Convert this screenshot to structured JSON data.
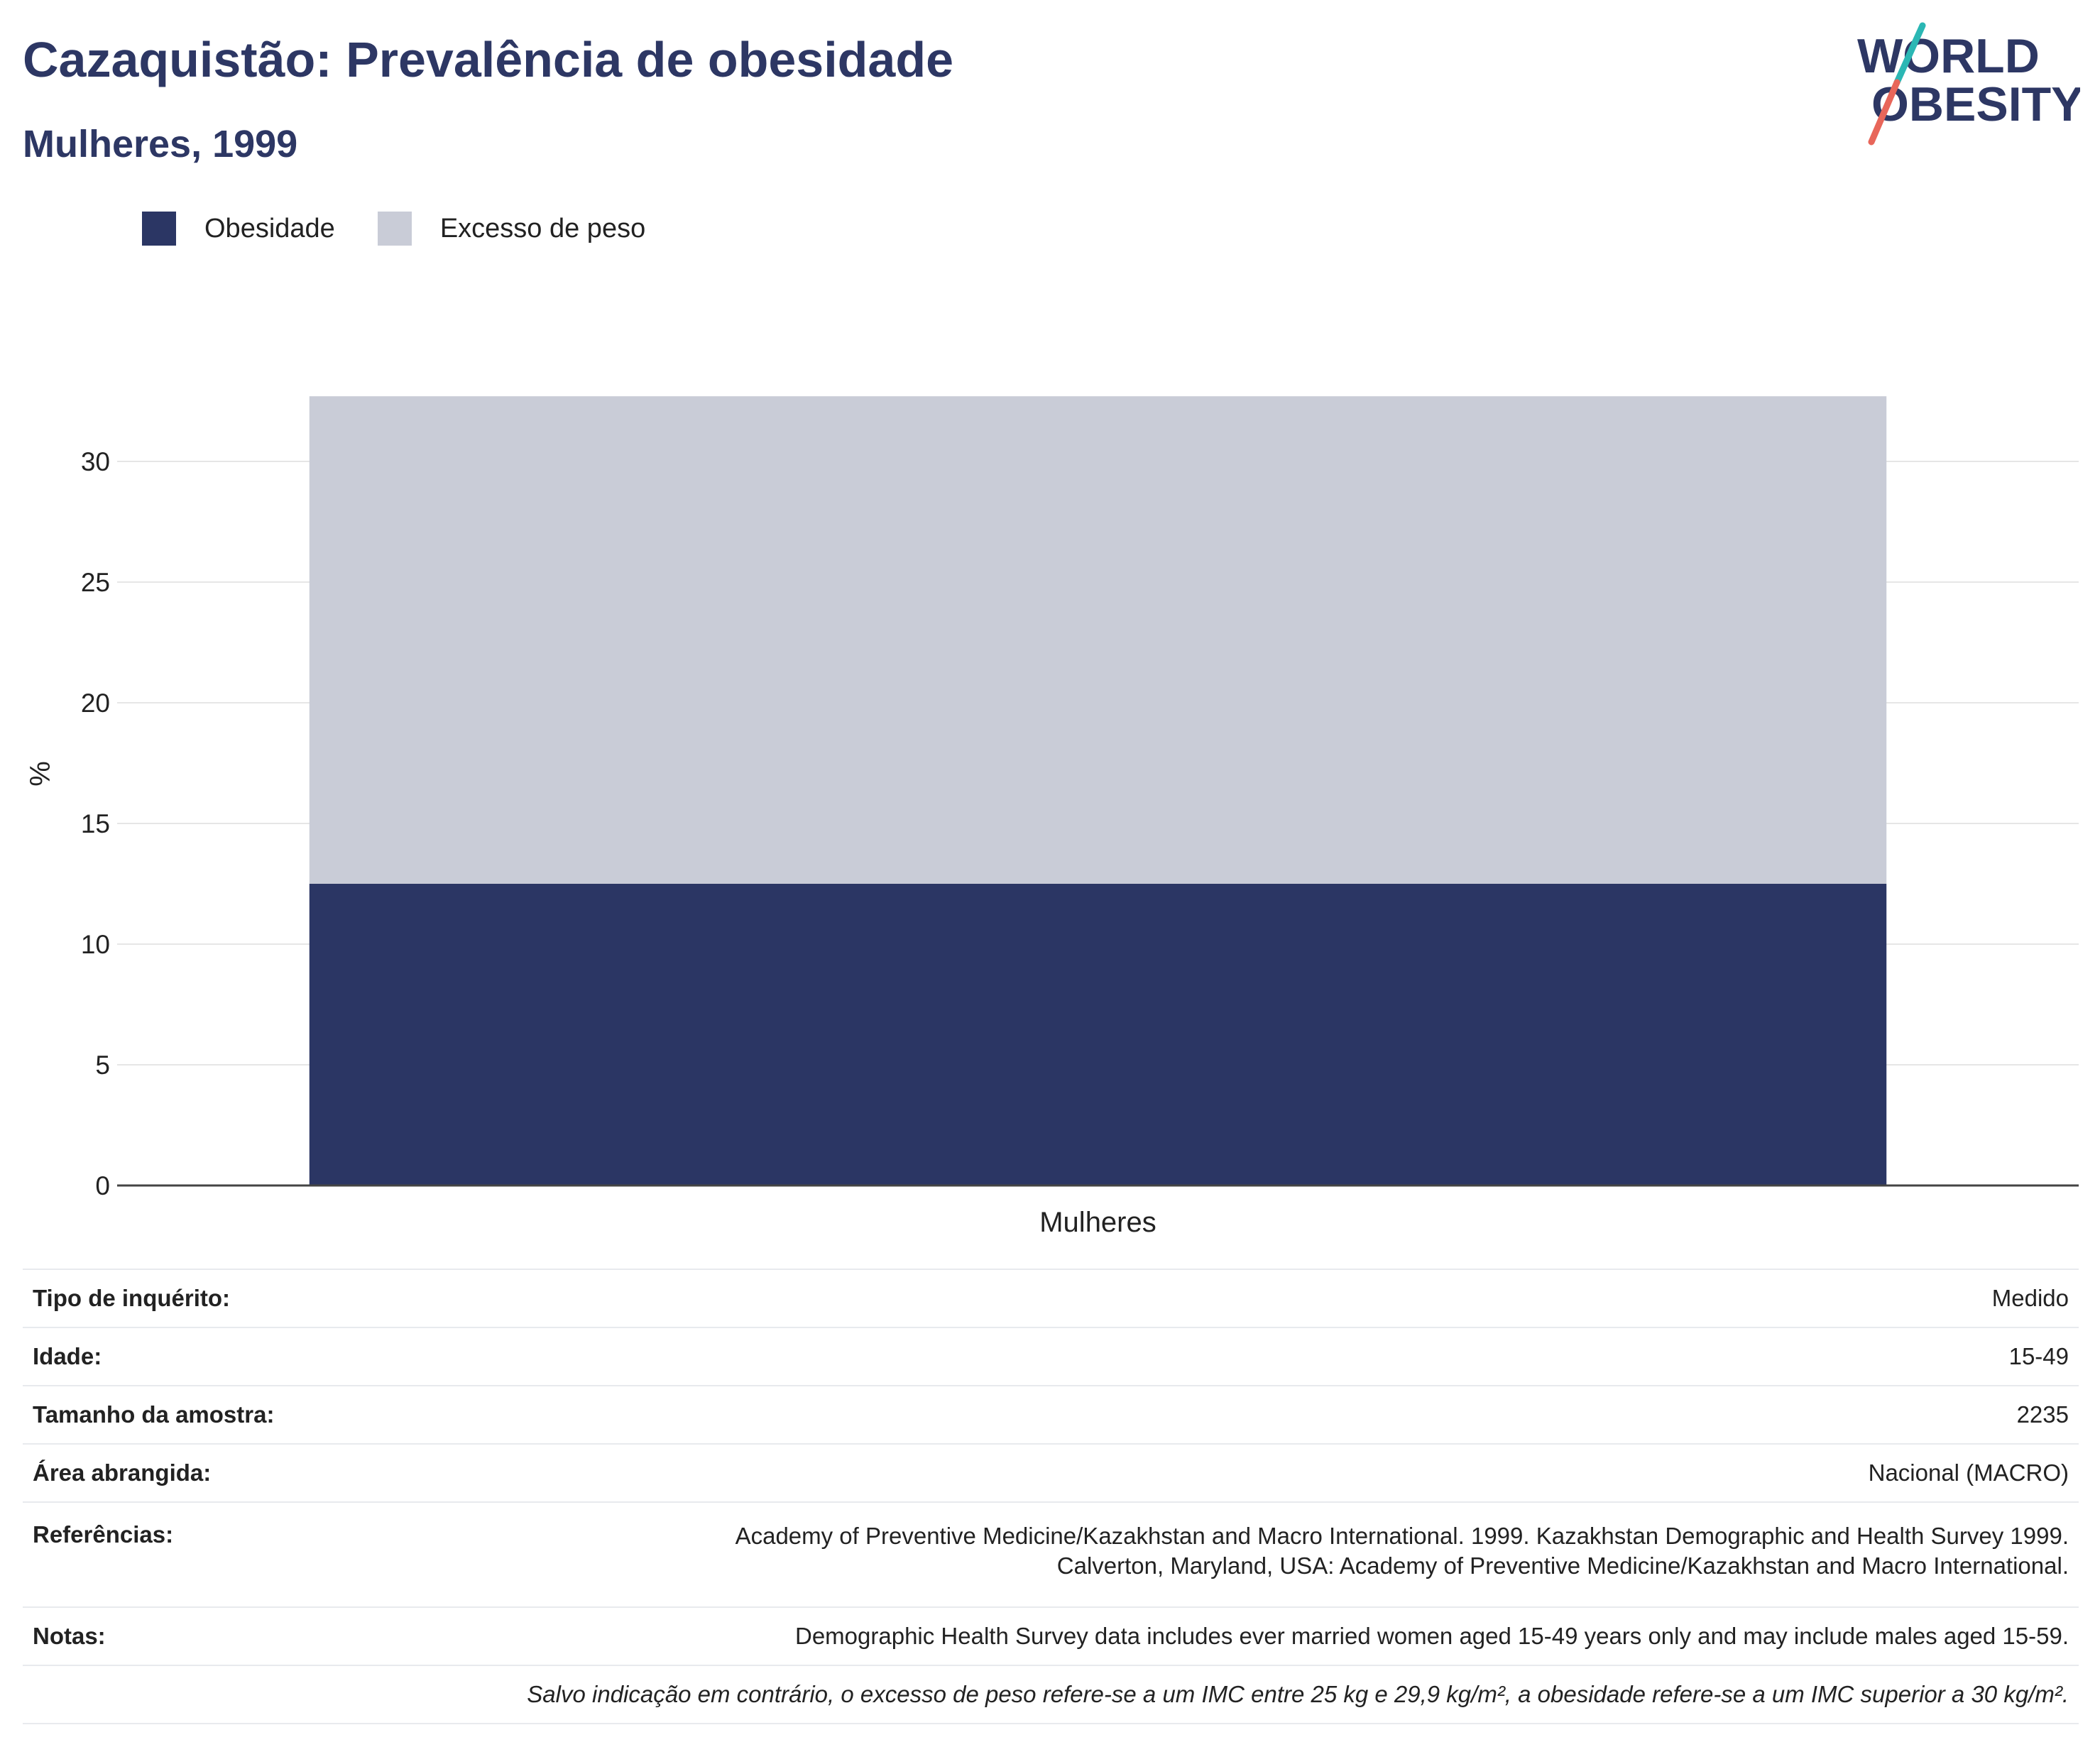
{
  "header": {
    "title": "Cazaquistão: Prevalência de obesidade",
    "subtitle": "Mulheres, 1999"
  },
  "logo": {
    "line1": "WORLD",
    "line2": "OBESITY",
    "colors": {
      "text": "#2d3764",
      "slash_top": "#2bb7b4",
      "slash_bottom": "#e8665a"
    }
  },
  "colors": {
    "obesity": "#2b3664",
    "overweight": "#c9ccd7",
    "grid": "#e6e6e6",
    "axis": "#444444"
  },
  "chart_data": {
    "type": "bar",
    "stacked": true,
    "categories": [
      "Mulheres"
    ],
    "series": [
      {
        "name": "Obesidade",
        "values": [
          12.5
        ],
        "color": "#2b3664"
      },
      {
        "name": "Excesso de peso",
        "values": [
          20.2
        ],
        "color": "#c9ccd7"
      }
    ],
    "ylabel": "%",
    "xlabel": "",
    "ylim": [
      0,
      33
    ],
    "yticks": [
      0,
      5,
      10,
      15,
      20,
      25,
      30
    ],
    "grid": true,
    "legend_position": "top-left"
  },
  "info": {
    "rows": [
      {
        "key": "Tipo de inquérito:",
        "value": "Medido"
      },
      {
        "key": "Idade:",
        "value": "15-49"
      },
      {
        "key": "Tamanho da amostra:",
        "value": "2235"
      },
      {
        "key": "Área abrangida:",
        "value": "Nacional (MACRO)"
      }
    ],
    "references_key": "Referências:",
    "references_lines": [
      "Academy of Preventive Medicine/Kazakhstan and Macro International. 1999. Kazakhstan Demographic and Health Survey 1999.",
      "Calverton, Maryland, USA: Academy of Preventive Medicine/Kazakhstan and Macro International."
    ],
    "notes_key": "Notas:",
    "notes_value": "Demographic Health Survey data includes ever married women aged 15-49 years only and may include males aged 15-59.",
    "footnote": "Salvo indicação em contrário, o excesso de peso refere-se a um IMC entre 25 kg e 29,9 kg/m², a obesidade refere-se a um IMC superior a 30 kg/m²."
  }
}
